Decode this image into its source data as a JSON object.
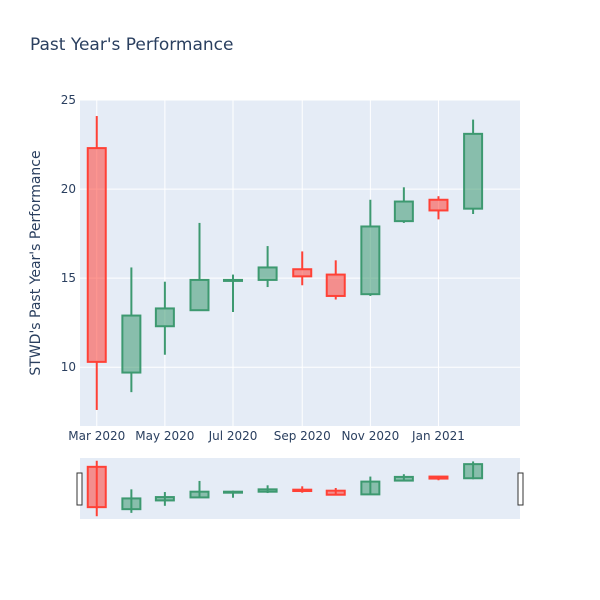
{
  "chart_data": {
    "type": "candlestick",
    "title": "Past Year's Performance",
    "ylabel": "STWD's Past Year's Performance",
    "xlabel": "",
    "ylim": [
      6.7,
      25
    ],
    "yticks": [
      10,
      15,
      20,
      25
    ],
    "xticks": [
      "Mar 2020",
      "May 2020",
      "Jul 2020",
      "Sep 2020",
      "Nov 2020",
      "Jan 2021"
    ],
    "xtick_dates": [
      "2020-03-01",
      "2020-05-01",
      "2020-07-01",
      "2020-09-01",
      "2020-11-01",
      "2021-01-01"
    ],
    "xlim": [
      "2020-02-15",
      "2021-03-15"
    ],
    "increasing_color": "#3D9970",
    "decreasing_color": "#FF4136",
    "grid": true,
    "rangeslider": true,
    "candles": [
      {
        "date": "2020-03-01",
        "open": 22.3,
        "high": 24.1,
        "low": 7.6,
        "close": 10.3
      },
      {
        "date": "2020-04-01",
        "open": 9.7,
        "high": 15.6,
        "low": 8.6,
        "close": 12.9
      },
      {
        "date": "2020-05-01",
        "open": 12.3,
        "high": 14.8,
        "low": 10.7,
        "close": 13.3
      },
      {
        "date": "2020-06-01",
        "open": 13.2,
        "high": 18.1,
        "low": 13.2,
        "close": 14.9
      },
      {
        "date": "2020-07-01",
        "open": 14.9,
        "high": 15.2,
        "low": 13.1,
        "close": 14.9
      },
      {
        "date": "2020-08-01",
        "open": 14.9,
        "high": 16.8,
        "low": 14.5,
        "close": 15.6
      },
      {
        "date": "2020-09-01",
        "open": 15.5,
        "high": 16.5,
        "low": 14.6,
        "close": 15.1
      },
      {
        "date": "2020-10-01",
        "open": 15.2,
        "high": 16.0,
        "low": 13.8,
        "close": 14.0
      },
      {
        "date": "2020-11-01",
        "open": 14.1,
        "high": 19.4,
        "low": 14.0,
        "close": 17.9
      },
      {
        "date": "2020-12-01",
        "open": 18.2,
        "high": 20.1,
        "low": 18.1,
        "close": 19.3
      },
      {
        "date": "2021-01-01",
        "open": 19.4,
        "high": 19.6,
        "low": 18.3,
        "close": 18.8
      },
      {
        "date": "2021-02-01",
        "open": 18.9,
        "high": 23.9,
        "low": 18.6,
        "close": 23.1
      }
    ]
  }
}
